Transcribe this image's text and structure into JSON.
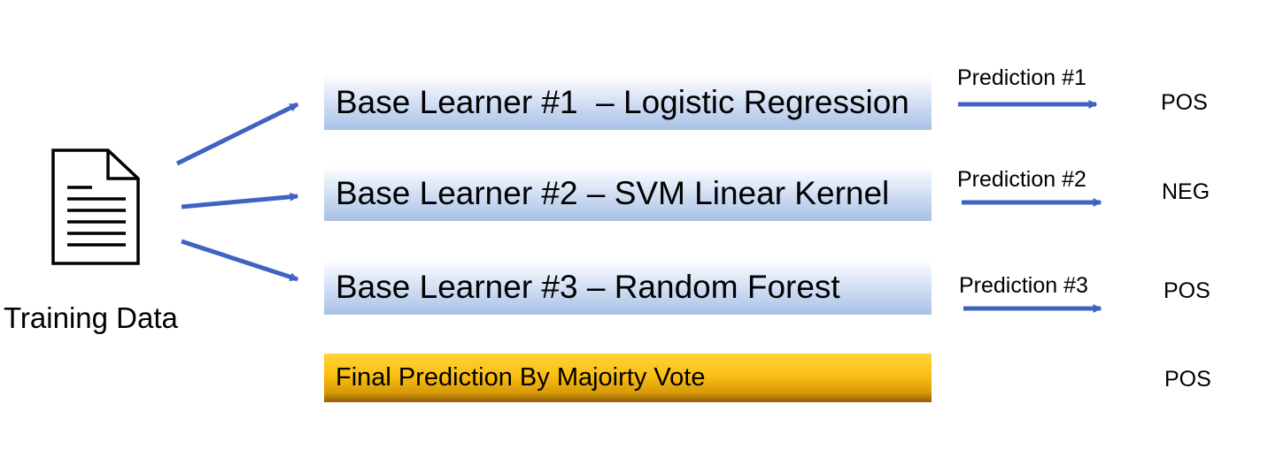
{
  "source": {
    "label": "Training Data",
    "icon": "document-icon"
  },
  "learners": [
    {
      "label": "Base Learner #1  – Logistic Regression",
      "prediction_label": "Prediction #1",
      "prediction": "POS"
    },
    {
      "label": "Base Learner #2 – SVM Linear Kernel",
      "prediction_label": "Prediction #2",
      "prediction": "NEG"
    },
    {
      "label": "Base Learner #3 – Random Forest",
      "prediction_label": "Prediction #3",
      "prediction": "POS"
    }
  ],
  "final": {
    "label": "Final Prediction By Majoirty Vote",
    "prediction": "POS"
  },
  "colors": {
    "arrow": "#3f63c0",
    "learner_box": "#a9c1e6",
    "final_box": "#fbbe12"
  }
}
